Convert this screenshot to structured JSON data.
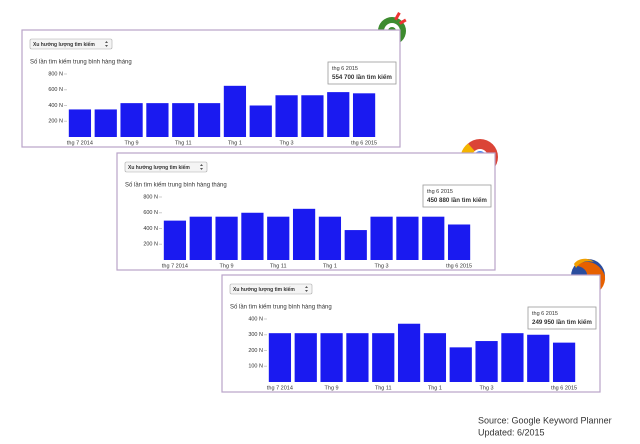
{
  "chart_data": [
    {
      "type": "bar",
      "dropdown": "Xu hướng lượng tìm kiếm",
      "title": "Số lần tìm kiếm trung bình hàng tháng",
      "categories": [
        "thg 7 2014",
        null,
        "Thg 9",
        null,
        "Thg 11",
        null,
        "Thg 1",
        null,
        "Thg 3",
        null,
        null,
        "thg 6 2015"
      ],
      "values": [
        350,
        350,
        430,
        430,
        430,
        430,
        650,
        400,
        530,
        530,
        570,
        554.7
      ],
      "color": "#1a1af0",
      "ylim": [
        0,
        800
      ],
      "yticks": [
        {
          "value": 200,
          "label": "200 N"
        },
        {
          "value": 400,
          "label": "400 N"
        },
        {
          "value": 600,
          "label": "600 N"
        },
        {
          "value": 800,
          "label": "800 N"
        }
      ],
      "tooltip": {
        "title": "thg 6 2015",
        "value_label": "554 700 lần tìm kiếm"
      }
    },
    {
      "type": "bar",
      "dropdown": "Xu hướng lượng tìm kiếm",
      "title": "Số lần tìm kiếm trung bình hàng tháng",
      "categories": [
        "thg 7 2014",
        null,
        "Thg 9",
        null,
        "Thg 11",
        null,
        "Thg 1",
        null,
        "Thg 3",
        null,
        null,
        "thg 6 2015"
      ],
      "values": [
        500,
        550,
        550,
        600,
        550,
        650,
        550,
        380,
        550,
        550,
        550,
        450.88
      ],
      "color": "#1a1af0",
      "ylim": [
        0,
        800
      ],
      "yticks": [
        {
          "value": 200,
          "label": "200 N"
        },
        {
          "value": 400,
          "label": "400 N"
        },
        {
          "value": 600,
          "label": "600 N"
        },
        {
          "value": 800,
          "label": "800 N"
        }
      ],
      "tooltip": {
        "title": "thg 6 2015",
        "value_label": "450 880 lần tìm kiếm"
      }
    },
    {
      "type": "bar",
      "dropdown": "Xu hướng lượng tìm kiếm",
      "title": "Số lần tìm kiếm trung bình hàng tháng",
      "categories": [
        "thg 7 2014",
        null,
        "Thg 9",
        null,
        "Thg 11",
        null,
        "Thg 1",
        null,
        "Thg 3",
        null,
        null,
        "thg 6 2015"
      ],
      "values": [
        310,
        310,
        310,
        310,
        310,
        370,
        310,
        220,
        260,
        310,
        300,
        249.95
      ],
      "color": "#1a1af0",
      "ylim": [
        0,
        400
      ],
      "yticks": [
        {
          "value": 100,
          "label": "100 N"
        },
        {
          "value": 200,
          "label": "200 N"
        },
        {
          "value": 300,
          "label": "300 N"
        },
        {
          "value": 400,
          "label": "400 N"
        }
      ],
      "tooltip": {
        "title": "thg 6 2015",
        "value_label": "249 950 lần tìm kiếm"
      }
    }
  ],
  "source": "Source: Google Keyword Planner",
  "updated": "Updated: 6/2015"
}
